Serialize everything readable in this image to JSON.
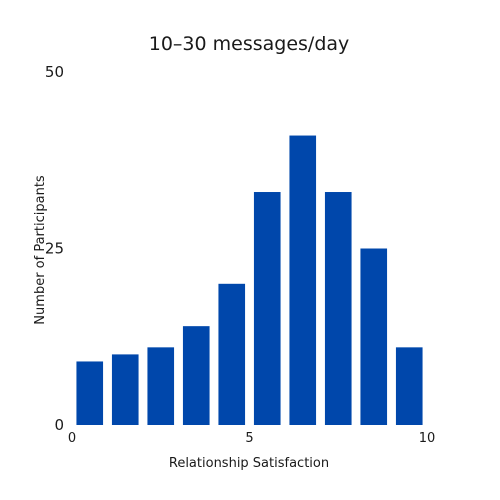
{
  "chart_data": {
    "type": "bar",
    "title": "10–30 messages/day",
    "xlabel": "Relationship Satisfaction",
    "ylabel": "Number of Participants",
    "x": [
      0.5,
      1.5,
      2.5,
      3.5,
      4.5,
      5.5,
      6.5,
      7.5,
      8.5,
      9.5
    ],
    "values": [
      9,
      10,
      11,
      14,
      20,
      33,
      41,
      33,
      25,
      11
    ],
    "bar_width": 0.75,
    "xlim": [
      0,
      10
    ],
    "ylim": [
      0,
      50
    ],
    "xticks": [
      0,
      5,
      10
    ],
    "yticks": [
      0,
      25,
      50
    ],
    "xtick_labels": [
      "0",
      "5",
      "10"
    ],
    "ytick_labels": [
      "0",
      "25",
      "50"
    ],
    "bar_color": "#0047ab",
    "grid": false,
    "legend": false
  }
}
